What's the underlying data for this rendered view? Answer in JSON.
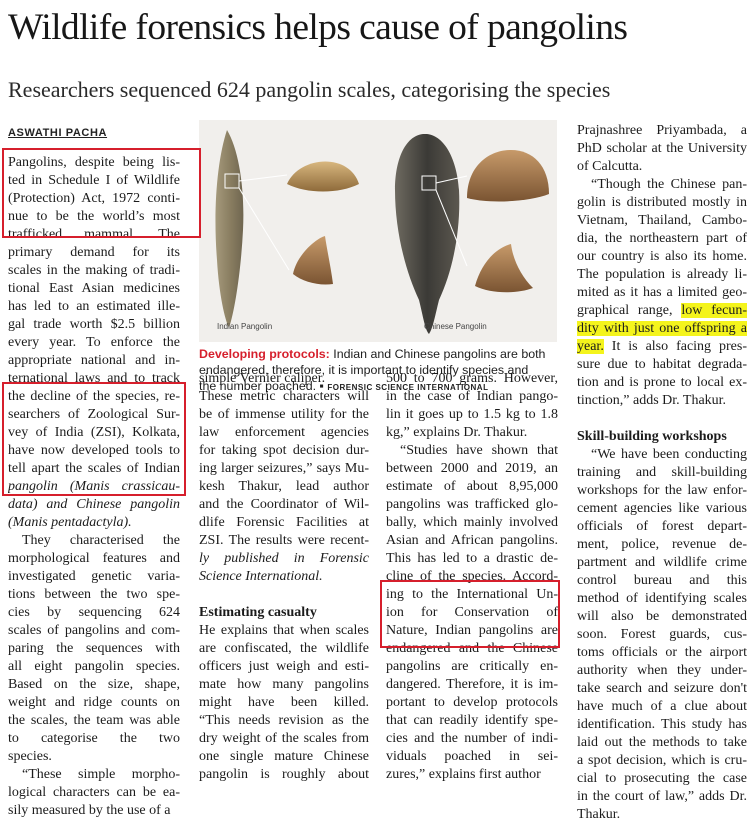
{
  "headline": "Wildlife forensics helps cause of pangolins",
  "subhead": "Researchers sequenced 624 pangolin scales, categorising the species",
  "byline": "ASWATHI PACHA",
  "figure": {
    "label_left": "Indian Pangolin",
    "label_right": "Chinese Pangolin"
  },
  "caption": {
    "lead": "Developing protocols:",
    "lines": [
      " Indian and Chinese pangolins are both",
      "endangered, therefore, it is important to identify species and",
      "the number poached."
    ],
    "credit": "FORENSIC SCIENCE INTERNATIONAL"
  },
  "col1": [
    "Pangolins, despite being lis-",
    "ted in Schedule I of Wildlife",
    "(Protection) Act, 1972 conti-",
    "nue to be the world’s most",
    "trafficked mammal. The",
    "primary demand for its",
    "scales in the making of tradi-",
    "tional East Asian medicines",
    "has led to an estimated ille-",
    "gal trade worth $2.5 billion",
    "every year. To enforce the",
    "appropriate national and in-",
    "ternational laws and to track",
    "the decline of the species, re-",
    "searchers of Zoological Sur-",
    "vey of India (ZSI), Kolkata,",
    "have now developed tools to",
    "tell apart the scales of Indian",
    "pangolin (Manis crassicau-",
    "data) and Chinese pangolin",
    "(Manis pentadactyla).",
    "They characterised the",
    "morphological features and",
    "investigated genetic varia-",
    "tions between the two spe-",
    "cies by sequencing 624",
    "scales of pangolins and com-",
    "paring the sequences with",
    "all eight pangolin species.",
    "Based on the size, shape,",
    "weight and ridge counts on",
    "the scales, the team was able",
    "to categorise the two",
    "species.",
    "“These simple morpho-",
    "logical characters can be ea-",
    "sily measured by the use of a"
  ],
  "col2": [
    "simple Vernier caliper.",
    "These metric characters will",
    "be of immense utility for the",
    "law enforcement agencies",
    "for taking spot decision dur-",
    "ing larger seizures,” says Mu-",
    "kesh Thakur, lead author",
    "and the Coordinator of Wil-",
    "dlife Forensic Facilities at",
    "ZSI. The results were recent-",
    "ly published in Forensic",
    "Science International.",
    "",
    "Estimating casualty",
    "He explains that when scales",
    "are confiscated, the wildlife",
    "officers just weigh and esti-",
    "mate how many pangolins",
    "might have been killed.",
    "“This needs revision as the",
    "dry weight of the scales from",
    "one single mature Chinese",
    "pangolin is roughly about"
  ],
  "col3": [
    "500 to 700 grams. However,",
    "in the case of Indian pango-",
    "lin it goes up to 1.5 kg to 1.8",
    "kg,” explains Dr. Thakur.",
    "“Studies have shown that",
    "between 2000 and 2019, an",
    "estimate of about 8,95,000",
    "pangolins was trafficked glo-",
    "bally, which mainly involved",
    "Asian and African pangolins.",
    "This has led to a drastic de-",
    "cline of the species. Accord-",
    "ing to the International Un-",
    "ion for Conservation of",
    "Nature, Indian pangolins are",
    "endangered and the Chinese",
    "pangolins are critically en-",
    "dangered. Therefore, it is im-",
    "portant to develop protocols",
    "that can readily identify spe-",
    "cies and the number of indi-",
    "viduals poached in sei-",
    "zures,” explains first author"
  ],
  "col4": [
    "Prajnashree Priyambada, a",
    "PhD scholar at the University",
    "of Calcutta.",
    "“Though the Chinese pan-",
    "golin is distributed mostly in",
    "Vietnam, Thailand, Cambo-",
    "dia, the northeastern part of",
    "our country is also its home.",
    "The population is already li-",
    "mited as it has a limited geo-",
    "graphical range, low fecun-",
    "dity with just one offspring a",
    "year. It is also facing pres-",
    "sure due to habitat degrada-",
    "tion and is prone to local ex-",
    "tinction,” adds Dr. Thakur.",
    "",
    "Skill-building workshops",
    "“We have been conducting",
    "training and skill-building",
    "workshops for the law enfor-",
    "cement agencies like various",
    "officials of forest depart-",
    "ment, police, revenue de-",
    "partment and wildlife crime",
    "control bureau and this",
    "method of identifying scales",
    "will also be demonstrated",
    "soon. Forest guards, cus-",
    "toms officials or the airport",
    "authority when they under-",
    "take search and seizure don't",
    "have much of a clue about",
    "identification. This study has",
    "laid out the methods to take",
    "a spot decision, which is cru-",
    "cial to prosecuting the case",
    "in the court of law,” adds Dr.",
    "Thakur."
  ]
}
